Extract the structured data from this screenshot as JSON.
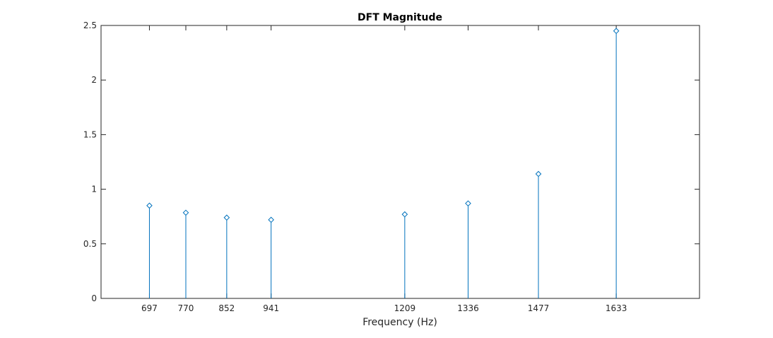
{
  "chart_data": {
    "type": "stem",
    "title": "DFT Magnitude",
    "xlabel": "Frequency (Hz)",
    "ylabel": "",
    "xlim": [
      600,
      1800
    ],
    "ylim": [
      0,
      2.5
    ],
    "x_ticks": [
      "697",
      "770",
      "852",
      "941",
      "1209",
      "1336",
      "1477",
      "1633"
    ],
    "y_ticks": [
      "0",
      "0.5",
      "1",
      "1.5",
      "2",
      "2.5"
    ],
    "x": [
      697,
      770,
      852,
      941,
      1209,
      1336,
      1477,
      1633
    ],
    "values": [
      0.85,
      0.785,
      0.74,
      0.72,
      0.77,
      0.87,
      1.14,
      2.45
    ],
    "marker": "diamond",
    "grid": false,
    "box": true,
    "colors": {
      "stem": "#0072bd",
      "axes": "#262626"
    }
  }
}
